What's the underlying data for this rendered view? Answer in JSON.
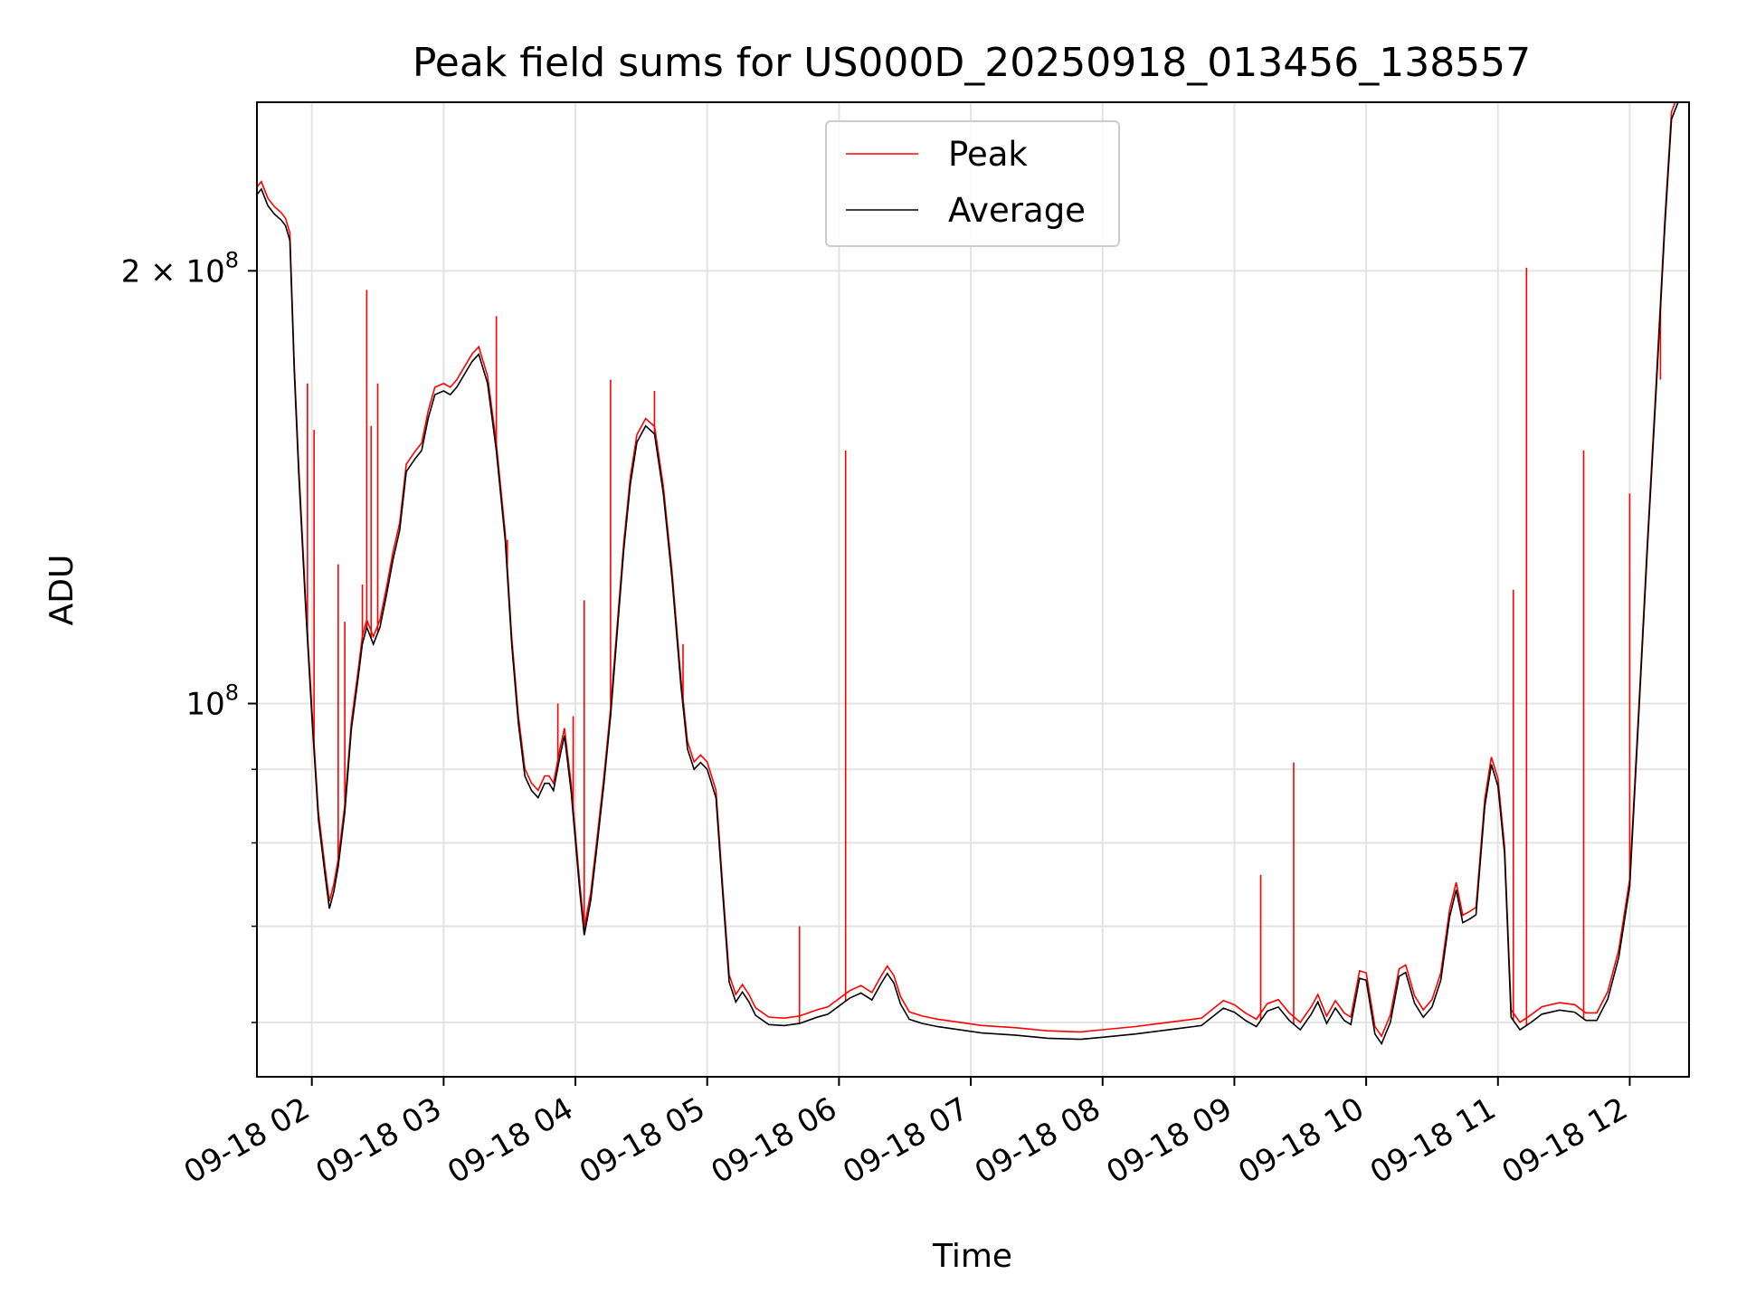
{
  "chart_data": {
    "type": "line",
    "title": "Peak field sums for US000D_20250918_013456_138557",
    "xlabel": "Time",
    "ylabel": "ADU",
    "x_range": [
      "2025-09-18 01:35",
      "2025-09-18 12:27"
    ],
    "y_scale": "log",
    "ylim": [
      55000000,
      262000000
    ],
    "grid": true,
    "legend_position": "top-center",
    "x_ticks": [
      "09-18 02",
      "09-18 03",
      "09-18 04",
      "09-18 05",
      "09-18 06",
      "09-18 07",
      "09-18 08",
      "09-18 09",
      "09-18 10",
      "09-18 11",
      "09-18 12"
    ],
    "y_tick_labels": [
      {
        "value": 100000000,
        "base": "10",
        "exp": "8",
        "prefix": ""
      },
      {
        "value": 200000000,
        "base": "10",
        "exp": "8",
        "prefix": "2 × "
      }
    ],
    "y_minor_ticks": [
      60000000,
      70000000,
      80000000,
      90000000
    ],
    "series": [
      {
        "name": "Average",
        "color": "#000000"
      },
      {
        "name": "Peak",
        "color": "#ff0000"
      }
    ],
    "average": [
      [
        "2025-09-18 01:35",
        226
      ],
      [
        "2025-09-18 01:37",
        228
      ],
      [
        "2025-09-18 01:40",
        222
      ],
      [
        "2025-09-18 01:43",
        219
      ],
      [
        "2025-09-18 01:46",
        217
      ],
      [
        "2025-09-18 01:48",
        215
      ],
      [
        "2025-09-18 01:50",
        210
      ],
      [
        "2025-09-18 01:52",
        170
      ],
      [
        "2025-09-18 01:54",
        145
      ],
      [
        "2025-09-18 01:57",
        118
      ],
      [
        "2025-09-18 02:00",
        98
      ],
      [
        "2025-09-18 02:03",
        83
      ],
      [
        "2025-09-18 02:06",
        76
      ],
      [
        "2025-09-18 02:08",
        72
      ],
      [
        "2025-09-18 02:10",
        74
      ],
      [
        "2025-09-18 02:12",
        77
      ],
      [
        "2025-09-18 02:15",
        84
      ],
      [
        "2025-09-18 02:18",
        96
      ],
      [
        "2025-09-18 02:21",
        104
      ],
      [
        "2025-09-18 02:23",
        110
      ],
      [
        "2025-09-18 02:25",
        113
      ],
      [
        "2025-09-18 02:28",
        110
      ],
      [
        "2025-09-18 02:31",
        113
      ],
      [
        "2025-09-18 02:34",
        119
      ],
      [
        "2025-09-18 02:37",
        126
      ],
      [
        "2025-09-18 02:40",
        132
      ],
      [
        "2025-09-18 02:43",
        145
      ],
      [
        "2025-09-18 02:47",
        148
      ],
      [
        "2025-09-18 02:50",
        150
      ],
      [
        "2025-09-18 02:53",
        158
      ],
      [
        "2025-09-18 02:56",
        164
      ],
      [
        "2025-09-18 03:00",
        165
      ],
      [
        "2025-09-18 03:03",
        164
      ],
      [
        "2025-09-18 03:06",
        166
      ],
      [
        "2025-09-18 03:10",
        170
      ],
      [
        "2025-09-18 03:13",
        173
      ],
      [
        "2025-09-18 03:16",
        175
      ],
      [
        "2025-09-18 03:20",
        167
      ],
      [
        "2025-09-18 03:24",
        150
      ],
      [
        "2025-09-18 03:28",
        130
      ],
      [
        "2025-09-18 03:31",
        110
      ],
      [
        "2025-09-18 03:34",
        97
      ],
      [
        "2025-09-18 03:37",
        89
      ],
      [
        "2025-09-18 03:40",
        87
      ],
      [
        "2025-09-18 03:43",
        86
      ],
      [
        "2025-09-18 03:46",
        88
      ],
      [
        "2025-09-18 03:48",
        88
      ],
      [
        "2025-09-18 03:50",
        87
      ],
      [
        "2025-09-18 03:53",
        92
      ],
      [
        "2025-09-18 03:55",
        95
      ],
      [
        "2025-09-18 03:58",
        87
      ],
      [
        "2025-09-18 04:02",
        74
      ],
      [
        "2025-09-18 04:04",
        69
      ],
      [
        "2025-09-18 04:07",
        73
      ],
      [
        "2025-09-18 04:10",
        80
      ],
      [
        "2025-09-18 04:13",
        88
      ],
      [
        "2025-09-18 04:16",
        98
      ],
      [
        "2025-09-18 04:19",
        112
      ],
      [
        "2025-09-18 04:22",
        128
      ],
      [
        "2025-09-18 04:25",
        142
      ],
      [
        "2025-09-18 04:28",
        152
      ],
      [
        "2025-09-18 04:32",
        156
      ],
      [
        "2025-09-18 04:36",
        154
      ],
      [
        "2025-09-18 04:40",
        140
      ],
      [
        "2025-09-18 04:44",
        122
      ],
      [
        "2025-09-18 04:48",
        103
      ],
      [
        "2025-09-18 04:51",
        93
      ],
      [
        "2025-09-18 04:54",
        90
      ],
      [
        "2025-09-18 04:57",
        91
      ],
      [
        "2025-09-18 05:00",
        90
      ],
      [
        "2025-09-18 05:04",
        86
      ],
      [
        "2025-09-18 05:07",
        74
      ],
      [
        "2025-09-18 05:10",
        64
      ],
      [
        "2025-09-18 05:13",
        62
      ],
      [
        "2025-09-18 05:16",
        63
      ],
      [
        "2025-09-18 05:19",
        62
      ],
      [
        "2025-09-18 05:22",
        60.7
      ],
      [
        "2025-09-18 05:28",
        59.8
      ],
      [
        "2025-09-18 05:35",
        59.7
      ],
      [
        "2025-09-18 05:42",
        59.9
      ],
      [
        "2025-09-18 05:50",
        60.5
      ],
      [
        "2025-09-18 05:55",
        60.8
      ],
      [
        "2025-09-18 06:00",
        61.6
      ],
      [
        "2025-09-18 06:05",
        62.4
      ],
      [
        "2025-09-18 06:10",
        62.9
      ],
      [
        "2025-09-18 06:15",
        62.2
      ],
      [
        "2025-09-18 06:19",
        63.8
      ],
      [
        "2025-09-18 06:22",
        64.9
      ],
      [
        "2025-09-18 06:25",
        63.9
      ],
      [
        "2025-09-18 06:28",
        61.8
      ],
      [
        "2025-09-18 06:32",
        60.3
      ],
      [
        "2025-09-18 06:38",
        59.9
      ],
      [
        "2025-09-18 06:45",
        59.6
      ],
      [
        "2025-09-18 06:55",
        59.3
      ],
      [
        "2025-09-18 07:05",
        59.0
      ],
      [
        "2025-09-18 07:20",
        58.8
      ],
      [
        "2025-09-18 07:35",
        58.5
      ],
      [
        "2025-09-18 07:50",
        58.4
      ],
      [
        "2025-09-18 08:00",
        58.6
      ],
      [
        "2025-09-18 08:15",
        58.9
      ],
      [
        "2025-09-18 08:30",
        59.3
      ],
      [
        "2025-09-18 08:45",
        59.7
      ],
      [
        "2025-09-18 08:55",
        61.4
      ],
      [
        "2025-09-18 09:00",
        61.0
      ],
      [
        "2025-09-18 09:05",
        60.2
      ],
      [
        "2025-09-18 09:10",
        59.6
      ],
      [
        "2025-09-18 09:15",
        61.1
      ],
      [
        "2025-09-18 09:20",
        61.5
      ],
      [
        "2025-09-18 09:25",
        60.2
      ],
      [
        "2025-09-18 09:30",
        59.3
      ],
      [
        "2025-09-18 09:35",
        60.8
      ],
      [
        "2025-09-18 09:38",
        62.0
      ],
      [
        "2025-09-18 09:42",
        59.9
      ],
      [
        "2025-09-18 09:46",
        61.4
      ],
      [
        "2025-09-18 09:50",
        60.2
      ],
      [
        "2025-09-18 09:53",
        59.8
      ],
      [
        "2025-09-18 09:57",
        64.4
      ],
      [
        "2025-09-18 10:00",
        64.2
      ],
      [
        "2025-09-18 10:04",
        58.9
      ],
      [
        "2025-09-18 10:07",
        58.0
      ],
      [
        "2025-09-18 10:11",
        60.0
      ],
      [
        "2025-09-18 10:15",
        64.6
      ],
      [
        "2025-09-18 10:18",
        65.0
      ],
      [
        "2025-09-18 10:22",
        61.9
      ],
      [
        "2025-09-18 10:26",
        60.5
      ],
      [
        "2025-09-18 10:30",
        61.5
      ],
      [
        "2025-09-18 10:34",
        64.2
      ],
      [
        "2025-09-18 10:38",
        71.1
      ],
      [
        "2025-09-18 10:41",
        74.2
      ],
      [
        "2025-09-18 10:44",
        70.4
      ],
      [
        "2025-09-18 10:47",
        70.8
      ],
      [
        "2025-09-18 10:50",
        71.3
      ],
      [
        "2025-09-18 10:54",
        84.8
      ],
      [
        "2025-09-18 10:57",
        90.7
      ],
      [
        "2025-09-18 11:00",
        87.6
      ],
      [
        "2025-09-18 11:03",
        78.6
      ],
      [
        "2025-09-18 11:06",
        60.5
      ],
      [
        "2025-09-18 11:10",
        59.3
      ],
      [
        "2025-09-18 11:15",
        60.0
      ],
      [
        "2025-09-18 11:20",
        60.8
      ],
      [
        "2025-09-18 11:28",
        61.2
      ],
      [
        "2025-09-18 11:35",
        61.0
      ],
      [
        "2025-09-18 11:40",
        60.2
      ],
      [
        "2025-09-18 11:45",
        60.2
      ],
      [
        "2025-09-18 11:50",
        62.3
      ],
      [
        "2025-09-18 11:55",
        66.6
      ],
      [
        "2025-09-18 12:00",
        74.6
      ],
      [
        "2025-09-18 12:04",
        97.6
      ],
      [
        "2025-09-18 12:08",
        128
      ],
      [
        "2025-09-18 12:12",
        165
      ],
      [
        "2025-09-18 12:16",
        215
      ],
      [
        "2025-09-18 12:19",
        255
      ],
      [
        "2025-09-18 12:22",
        262
      ],
      [
        "2025-09-18 12:27",
        262
      ]
    ],
    "peak_spikes": [
      [
        "2025-09-18 01:58",
        167
      ],
      [
        "2025-09-18 02:01",
        155
      ],
      [
        "2025-09-18 02:12",
        125
      ],
      [
        "2025-09-18 02:15",
        114
      ],
      [
        "2025-09-18 02:23",
        121
      ],
      [
        "2025-09-18 02:25",
        194
      ],
      [
        "2025-09-18 02:27",
        156
      ],
      [
        "2025-09-18 02:30",
        167
      ],
      [
        "2025-09-18 03:24",
        186
      ],
      [
        "2025-09-18 03:29",
        130
      ],
      [
        "2025-09-18 03:52",
        100
      ],
      [
        "2025-09-18 03:59",
        98
      ],
      [
        "2025-09-18 04:04",
        118
      ],
      [
        "2025-09-18 04:16",
        168
      ],
      [
        "2025-09-18 04:36",
        165
      ],
      [
        "2025-09-18 04:49",
        110
      ],
      [
        "2025-09-18 05:42",
        70
      ],
      [
        "2025-09-18 06:03",
        150
      ],
      [
        "2025-09-18 09:12",
        76
      ],
      [
        "2025-09-18 09:27",
        91
      ],
      [
        "2025-09-18 11:07",
        120
      ],
      [
        "2025-09-18 11:13",
        201
      ],
      [
        "2025-09-18 11:39",
        150
      ],
      [
        "2025-09-18 12:00",
        140
      ],
      [
        "2025-09-18 12:14",
        168
      ]
    ],
    "values_unit": "millions of ADU"
  }
}
